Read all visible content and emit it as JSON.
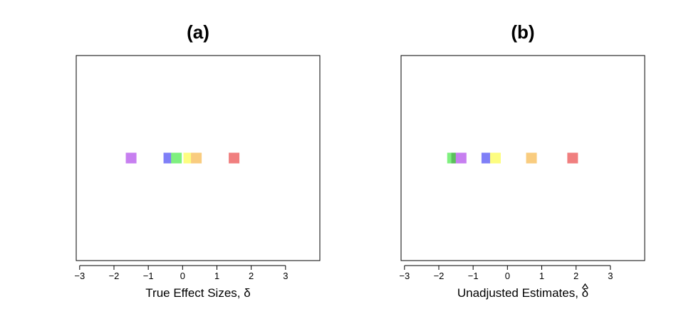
{
  "chart_data": [
    {
      "type": "scatter",
      "title": "(a)",
      "xlabel": "True Effect Sizes, δ",
      "xlabel_hat": false,
      "xlim": [
        -3.1,
        4.0
      ],
      "xticks": [
        -3,
        -2,
        -1,
        0,
        1,
        2,
        3
      ],
      "xtick_labels": [
        "−3",
        "−2",
        "−1",
        "0",
        "1",
        "2",
        "3"
      ],
      "grid": false,
      "points": [
        {
          "x": -1.5,
          "y": 0,
          "color": "#c77ff0"
        },
        {
          "x": -0.4,
          "y": 0,
          "color": "#7f7ff7"
        },
        {
          "x": -0.18,
          "y": 0,
          "color": "#7ff07f"
        },
        {
          "x": 0.18,
          "y": 0,
          "color": "#fdfd80"
        },
        {
          "x": 0.4,
          "y": 0,
          "color": "#f9cc7f"
        },
        {
          "x": 1.5,
          "y": 0,
          "color": "#f07f7f"
        }
      ]
    },
    {
      "type": "scatter",
      "title": "(b)",
      "xlabel": "Unadjusted Estimates, δ",
      "xlabel_hat": true,
      "xlim": [
        -3.1,
        4.0
      ],
      "xticks": [
        -3,
        -2,
        -1,
        0,
        1,
        2,
        3
      ],
      "xtick_labels": [
        "−3",
        "−2",
        "−1",
        "0",
        "1",
        "2",
        "3"
      ],
      "grid": false,
      "points": [
        {
          "x": -1.6,
          "y": 0,
          "color": "#7ff07f"
        },
        {
          "x": -1.48,
          "y": 0,
          "color": "#5cc05c"
        },
        {
          "x": -1.35,
          "y": 0,
          "color": "#c77ff0"
        },
        {
          "x": -0.6,
          "y": 0,
          "color": "#7f7ff7"
        },
        {
          "x": -0.35,
          "y": 0,
          "color": "#fdfd80"
        },
        {
          "x": 0.7,
          "y": 0,
          "color": "#f9cc7f"
        },
        {
          "x": 1.9,
          "y": 0,
          "color": "#f07f7f"
        }
      ]
    }
  ]
}
